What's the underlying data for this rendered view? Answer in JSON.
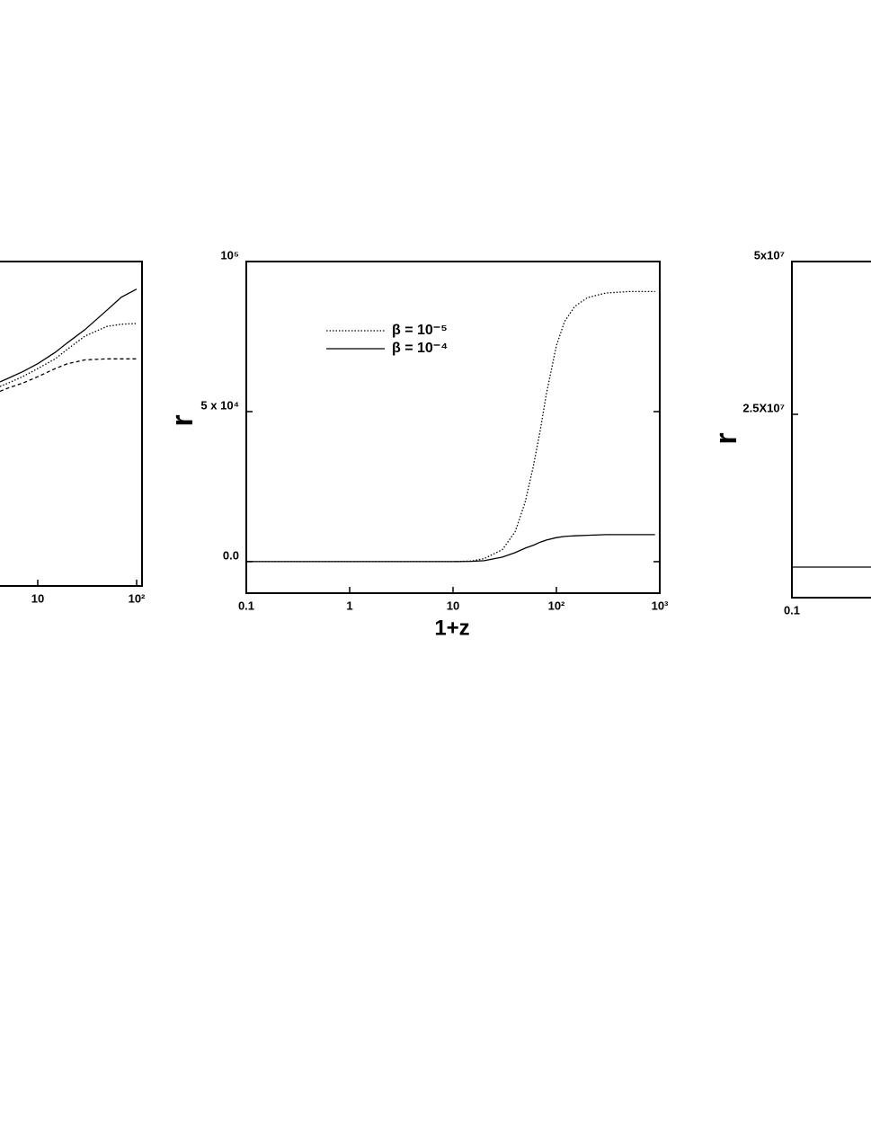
{
  "chart_data": [
    {
      "type": "line",
      "xscale": "log",
      "xlim": [
        1,
        100
      ],
      "ylim": [
        0,
        1
      ],
      "xticks": [
        10,
        {
          "value": 100,
          "label": "10²"
        }
      ],
      "x": [
        4.15,
        5,
        7,
        10,
        15,
        20,
        30,
        50,
        70,
        100
      ],
      "series": [
        {
          "color": "#000000",
          "dash": "solid",
          "values": [
            0.629,
            0.64,
            0.66,
            0.685,
            0.72,
            0.75,
            0.79,
            0.85,
            0.89,
            0.915
          ]
        },
        {
          "color": "#000000",
          "dash": "dotted",
          "values": [
            0.615,
            0.625,
            0.645,
            0.67,
            0.7,
            0.73,
            0.77,
            0.8,
            0.807,
            0.809
          ]
        },
        {
          "color": "#000000",
          "dash": "dashed",
          "values": [
            0.6,
            0.61,
            0.625,
            0.645,
            0.67,
            0.685,
            0.697,
            0.7,
            0.7,
            0.7
          ]
        }
      ]
    },
    {
      "type": "line",
      "xscale": "log",
      "xlim": [
        0.1,
        1000
      ],
      "ylim": [
        -10500,
        100000
      ],
      "xticks": [
        0.1,
        1,
        10,
        {
          "value": 100,
          "label": "10²"
        },
        {
          "value": 1000,
          "label": "10³"
        }
      ],
      "yticks": [
        {
          "value": 100000,
          "label": "10⁵"
        },
        {
          "value": 50000,
          "label": "5 x 10⁴"
        },
        {
          "value": 0,
          "label": "0.0"
        }
      ],
      "xlabel": "1+z",
      "ylabel": "r",
      "x": [
        0.1,
        1,
        10,
        15,
        20,
        30,
        40,
        50,
        60,
        70,
        80,
        100,
        120,
        150,
        200,
        300,
        500,
        900
      ],
      "series": [
        {
          "name": "β = 10⁻⁵",
          "color": "#000000",
          "dash": "dotted",
          "values": [
            0,
            0,
            0,
            200,
            1000,
            4000,
            10000,
            20000,
            32000,
            44000,
            56000,
            72000,
            80000,
            85000,
            88000,
            89500,
            90000,
            90000
          ]
        },
        {
          "name": "β = 10⁻⁴",
          "color": "#000000",
          "dash": "solid",
          "values": [
            0,
            0,
            0,
            100,
            300,
            1500,
            3000,
            4500,
            5500,
            6500,
            7200,
            8000,
            8400,
            8600,
            8800,
            9000,
            9000,
            9000
          ]
        }
      ]
    },
    {
      "type": "line",
      "xscale": "log",
      "xlim": [
        0.1,
        1000
      ],
      "ylim": [
        -5000000,
        50000000
      ],
      "xticks": [
        0.1
      ],
      "yticks": [
        {
          "value": 50000000,
          "label": "5x10⁷"
        },
        {
          "value": 25000000,
          "label": "2.5X10⁷"
        }
      ],
      "ylabel": "r",
      "x": [
        0.1,
        1000
      ],
      "series": [
        {
          "color": "#000000",
          "dash": "solid",
          "values": [
            0,
            0
          ]
        }
      ]
    }
  ]
}
